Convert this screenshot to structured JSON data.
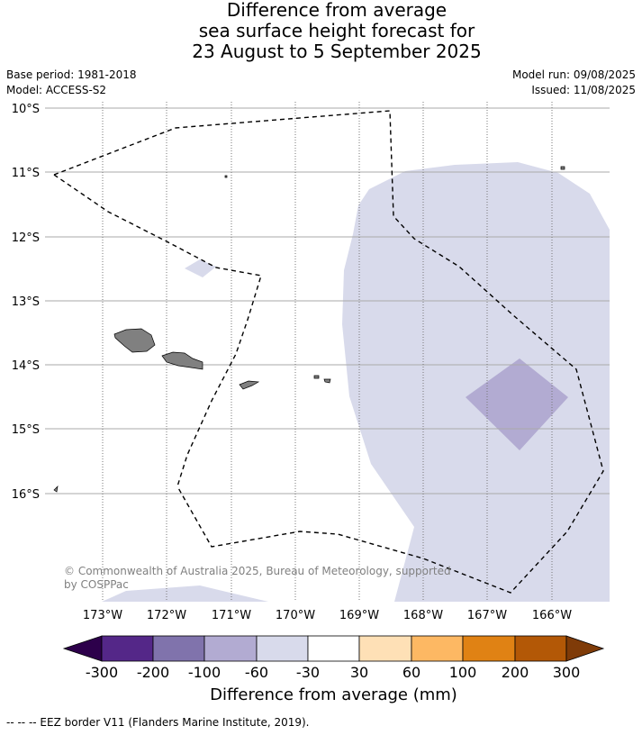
{
  "title": {
    "line1": "Difference from average",
    "line2": "sea surface height forecast for",
    "line3": "23 August to 5 September 2025"
  },
  "meta": {
    "base_period": "Base period: 1981-2018",
    "model": "Model: ACCESS-S2",
    "model_run": "Model run: 09/08/2025",
    "issued": "Issued: 11/08/2025"
  },
  "map": {
    "lat_labels": [
      "10°S",
      "11°S",
      "12°S",
      "13°S",
      "14°S",
      "15°S",
      "16°S"
    ],
    "lon_labels": [
      "173°W",
      "172°W",
      "171°W",
      "170°W",
      "169°W",
      "168°W",
      "167°W",
      "166°W"
    ],
    "copyright": "© Commonwealth of Australia 2025, Bureau of Meteorology, supported by COSPPac",
    "colors": {
      "land": "#808080",
      "eez": "#000000",
      "grid": "#999999"
    }
  },
  "colorbar": {
    "labels": [
      "-300",
      "-200",
      "-100",
      "-60",
      "-30",
      "30",
      "60",
      "100",
      "200",
      "300"
    ],
    "colors": [
      "#2d004b",
      "#542788",
      "#8073ac",
      "#b2abd2",
      "#d8daeb",
      "#ffffff",
      "#fee0b6",
      "#fdb863",
      "#e08214",
      "#b35806",
      "#7f3b08"
    ],
    "title": "Difference from average (mm)"
  },
  "legend_note": "--  --  -- EEZ border V11 (Flanders Marine Institute, 2019)."
}
